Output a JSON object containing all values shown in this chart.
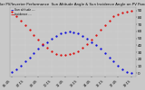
{
  "title": "Solar PV/Inverter Performance  Sun Altitude Angle & Sun Incidence Angle on PV Panels",
  "background_color": "#c8c8c8",
  "plot_bg_color": "#c8c8c8",
  "grid_color": "#e8e8e8",
  "altitude_color": "#0000dd",
  "incidence_color": "#dd0000",
  "ylim": [
    -5,
    95
  ],
  "yticks": [
    0,
    10,
    20,
    30,
    40,
    50,
    60,
    70,
    80,
    90
  ],
  "ytick_labels": [
    "0",
    "10",
    "20",
    "30",
    "40",
    "50",
    "60",
    "70",
    "80",
    "90"
  ],
  "xlim": [
    5.5,
    19.75
  ],
  "xtick_vals": [
    5.75,
    7.25,
    8.75,
    10.25,
    11.75,
    13.25,
    14.75,
    16.25,
    17.75,
    19.25
  ],
  "xtick_labels": [
    "05:45",
    "07:15",
    "08:45",
    "10:15",
    "11:45",
    "13:15",
    "14:45",
    "16:15",
    "17:45",
    "19:15"
  ],
  "legend_altitude": "Sun altitude ---",
  "legend_incidence": "Incidence -.-",
  "time_hours": [
    5.75,
    6.25,
    6.75,
    7.25,
    7.75,
    8.25,
    8.75,
    9.25,
    9.75,
    10.25,
    10.75,
    11.25,
    11.75,
    12.25,
    12.75,
    13.25,
    13.75,
    14.25,
    14.75,
    15.25,
    15.75,
    16.25,
    16.75,
    17.25,
    17.75,
    18.25,
    18.75,
    19.25
  ],
  "altitude_values": [
    2,
    6,
    11,
    17,
    23,
    29,
    35,
    40,
    45,
    50,
    54,
    57,
    59,
    60,
    59,
    57,
    54,
    50,
    45,
    40,
    35,
    29,
    23,
    17,
    11,
    6,
    2,
    0
  ],
  "incidence_values": [
    88,
    82,
    76,
    69,
    62,
    55,
    48,
    42,
    37,
    32,
    28,
    26,
    26,
    27,
    29,
    32,
    37,
    42,
    48,
    55,
    62,
    69,
    76,
    82,
    85,
    87,
    88,
    89
  ]
}
